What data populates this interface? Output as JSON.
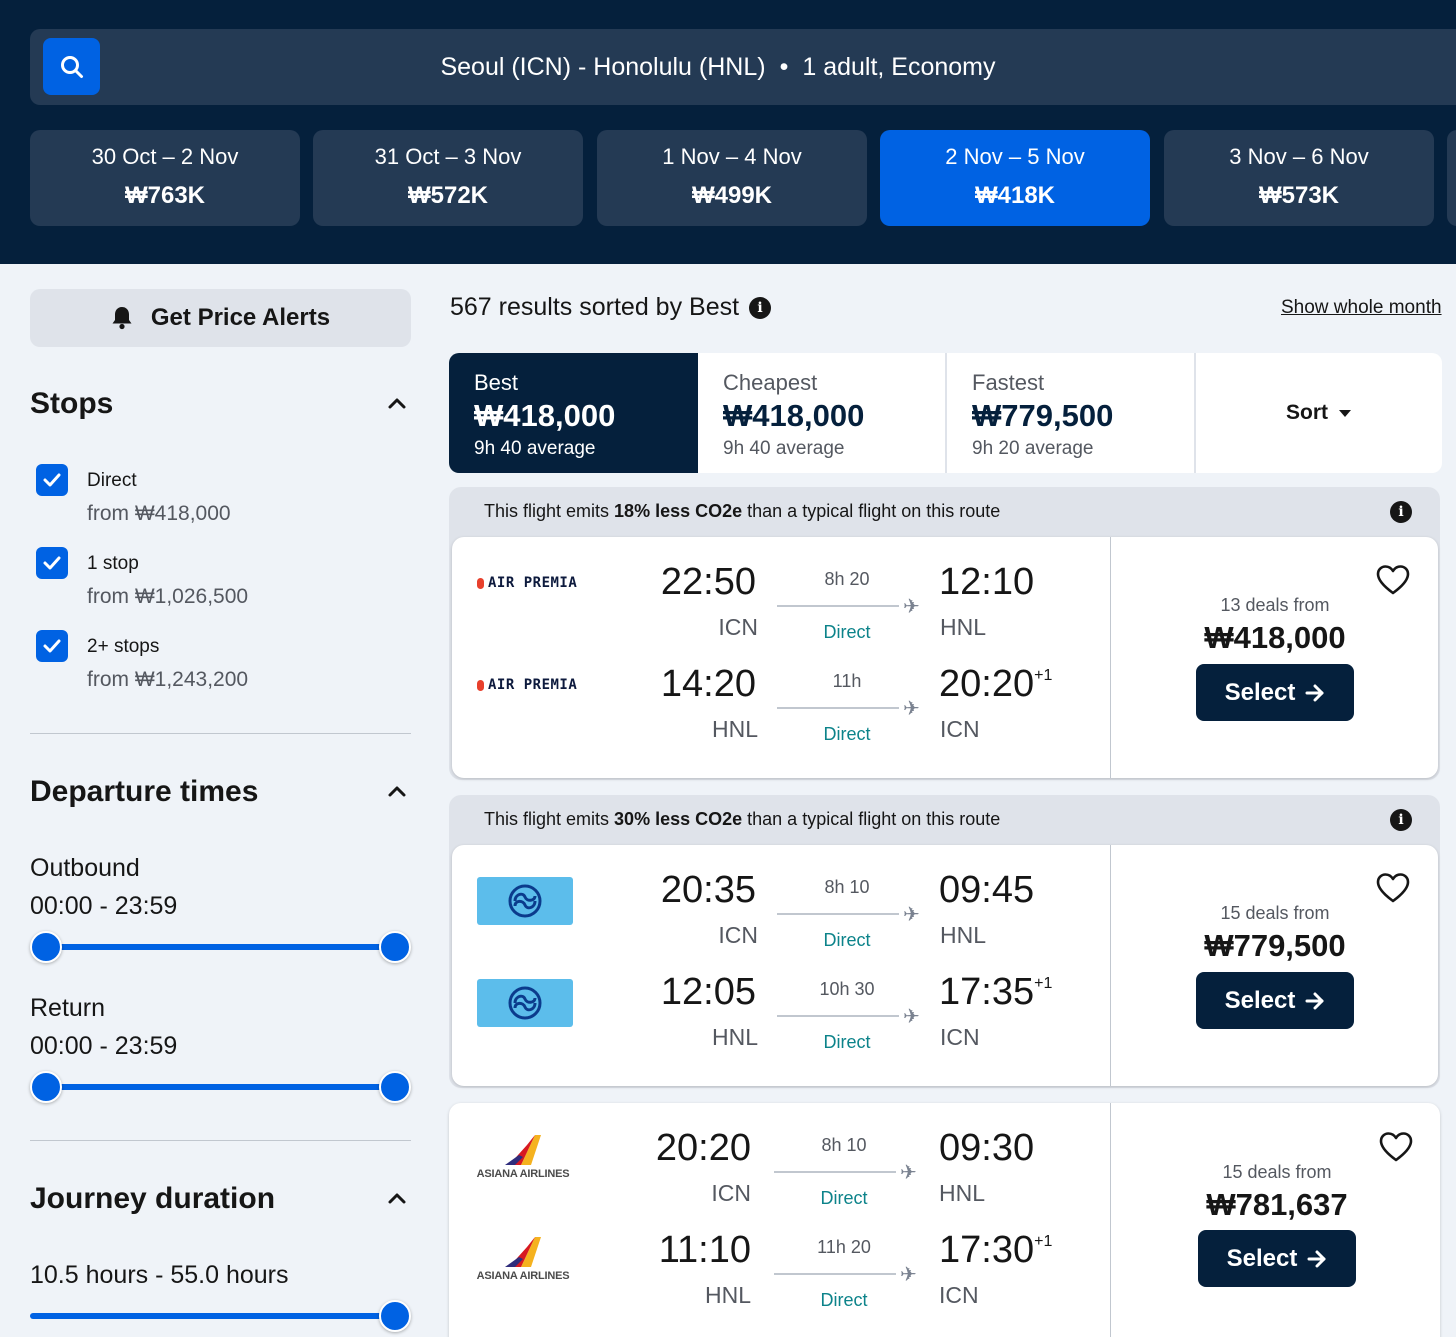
{
  "search": {
    "route": "Seoul (ICN) - Honolulu (HNL)",
    "separator": "•",
    "passengers": "1 adult, Economy"
  },
  "dates": [
    {
      "range": "30 Oct – 2 Nov",
      "price": "₩763K"
    },
    {
      "range": "31 Oct – 3 Nov",
      "price": "₩572K"
    },
    {
      "range": "1 Nov – 4 Nov",
      "price": "₩499K"
    },
    {
      "range": "2 Nov – 5 Nov",
      "price": "₩418K"
    },
    {
      "range": "3 Nov – 6 Nov",
      "price": "₩573K"
    }
  ],
  "sidebar": {
    "alert_label": "Get Price Alerts",
    "stops_title": "Stops",
    "stops": [
      {
        "label": "Direct",
        "sub": "from ₩418,000",
        "checked": true
      },
      {
        "label": "1 stop",
        "sub": "from ₩1,026,500",
        "checked": true
      },
      {
        "label": "2+ stops",
        "sub": "from ₩1,243,200",
        "checked": true
      }
    ],
    "departure_title": "Departure times",
    "outbound_label": "Outbound",
    "outbound_range": "00:00 - 23:59",
    "return_label": "Return",
    "return_range": "00:00 - 23:59",
    "journey_title": "Journey duration",
    "journey_range": "10.5 hours - 55.0 hours"
  },
  "results": {
    "count_text": "567 results sorted by Best",
    "show_month": "Show whole month",
    "tabs": [
      {
        "label": "Best",
        "price": "₩418,000",
        "avg": "9h 40 average"
      },
      {
        "label": "Cheapest",
        "price": "₩418,000",
        "avg": "9h 40 average"
      },
      {
        "label": "Fastest",
        "price": "₩779,500",
        "avg": "9h 20 average"
      }
    ],
    "sort_label": "Sort"
  },
  "flights": [
    {
      "eco_pre": "This flight emits ",
      "eco_bold": "18% less CO2e",
      "eco_post": " than a typical flight on this route",
      "airline": "AIR PREMIA",
      "legs": [
        {
          "dep": "22:50",
          "dep_code": "ICN",
          "dur": "8h 20",
          "stops": "Direct",
          "arr": "12:10",
          "arr_code": "HNL",
          "plus": ""
        },
        {
          "dep": "14:20",
          "dep_code": "HNL",
          "dur": "11h",
          "stops": "Direct",
          "arr": "20:20",
          "arr_code": "ICN",
          "plus": "+1"
        }
      ],
      "deals": "13 deals from",
      "price": "₩418,000",
      "select": "Select"
    },
    {
      "eco_pre": "This flight emits ",
      "eco_bold": "30% less CO2e",
      "eco_post": " than a typical flight on this route",
      "airline": "korean-air-logo",
      "legs": [
        {
          "dep": "20:35",
          "dep_code": "ICN",
          "dur": "8h 10",
          "stops": "Direct",
          "arr": "09:45",
          "arr_code": "HNL",
          "plus": ""
        },
        {
          "dep": "12:05",
          "dep_code": "HNL",
          "dur": "10h 30",
          "stops": "Direct",
          "arr": "17:35",
          "arr_code": "ICN",
          "plus": "+1"
        }
      ],
      "deals": "15 deals from",
      "price": "₩779,500",
      "select": "Select"
    },
    {
      "airline": "ASIANA AIRLINES",
      "legs": [
        {
          "dep": "20:20",
          "dep_code": "ICN",
          "dur": "8h 10",
          "stops": "Direct",
          "arr": "09:30",
          "arr_code": "HNL",
          "plus": ""
        },
        {
          "dep": "11:10",
          "dep_code": "HNL",
          "dur": "11h 20",
          "stops": "Direct",
          "arr": "17:30",
          "arr_code": "ICN",
          "plus": "+1"
        }
      ],
      "deals": "15 deals from",
      "price": "₩781,637",
      "select": "Select"
    }
  ],
  "colors": {
    "navy": "#05203c",
    "blue": "#0062e3",
    "teal": "#0c838a",
    "card": "#ffffff",
    "bg": "#eff3f8"
  }
}
